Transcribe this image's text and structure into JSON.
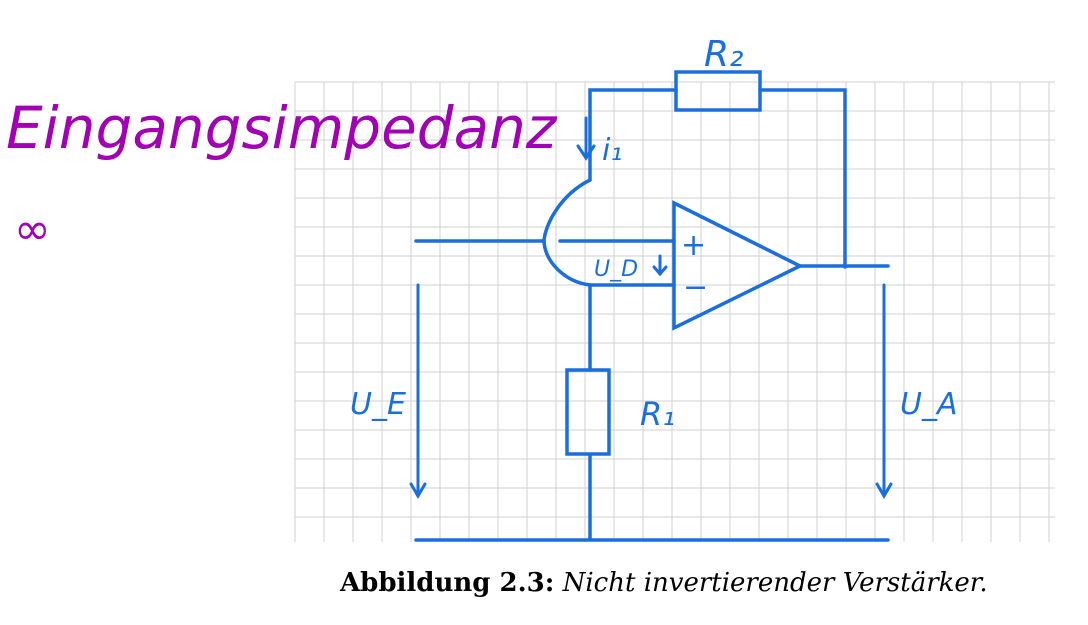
{
  "annotation": {
    "title": "Eingangsimpedanz",
    "value": "∞",
    "color": "#a100b5"
  },
  "circuit": {
    "wire_color": "#1a6fdc",
    "grid_color": "#d0d0d0",
    "labels": {
      "r2": "R₂",
      "r1": "R₁",
      "i1": "i₁",
      "ud": "U_D",
      "ue": "U_E",
      "ua": "U_A",
      "plus": "+",
      "minus": "−"
    }
  },
  "caption": {
    "lead": "Abbildung 2.3:",
    "text": "Nicht invertierender Verstärker."
  }
}
